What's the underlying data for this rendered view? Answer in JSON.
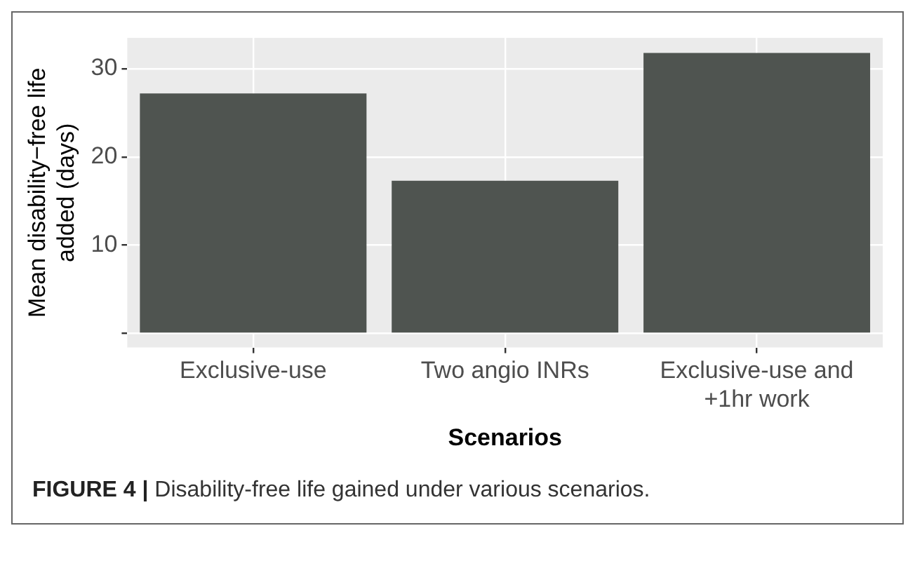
{
  "chart_data": {
    "type": "bar",
    "categories": [
      "Exclusive-use",
      "Two angio INRs",
      "Exclusive-use and +1hr work"
    ],
    "values": [
      27.2,
      17.3,
      31.8
    ],
    "color": "#4f5450",
    "xlabel": "Scenarios",
    "ylabel": "Mean disability−free life added (days)",
    "ylim": [
      -1.6,
      33.5
    ],
    "yticks": [
      {
        "value": 0,
        "label": null
      },
      10,
      20,
      30
    ],
    "grid": true,
    "annotations": [
      "FIGURE 4 | Disability-free life gained under various scenarios."
    ]
  }
}
